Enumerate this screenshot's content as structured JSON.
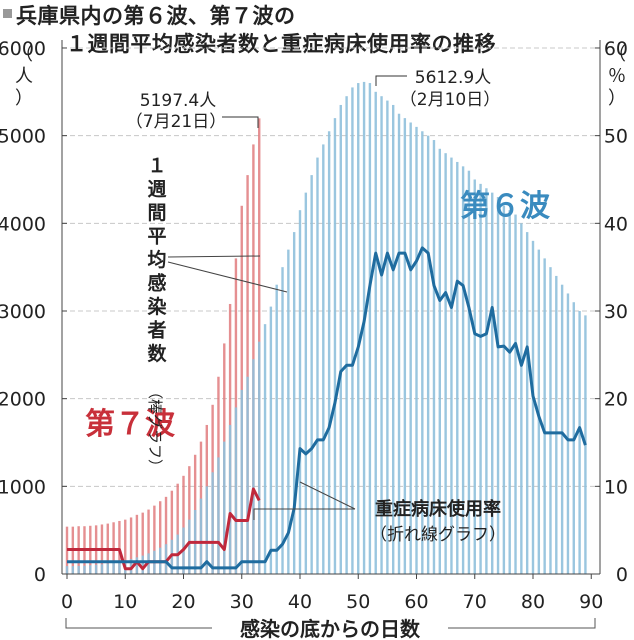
{
  "chart_data": {
    "type": "bar+line",
    "title": "兵庫県内の第６波、第７波の",
    "subtitle": "１週間平均感染者数と重症病床使用率の推移",
    "xlabel": "感染の底からの日数",
    "ylabel_left": "人",
    "ylabel_right": "％",
    "x_ticks": [
      "0",
      "10",
      "20",
      "30",
      "40",
      "50",
      "60",
      "70",
      "80",
      "90"
    ],
    "y_left_ticks": [
      "0",
      "1000",
      "2000",
      "3000",
      "4000",
      "5000",
      "6000"
    ],
    "y_right_ticks": [
      "0",
      "10",
      "20",
      "30",
      "40",
      "50",
      "60"
    ],
    "ylim_left": [
      0,
      6000
    ],
    "ylim_right": [
      0,
      60
    ],
    "xlim": [
      0,
      90
    ],
    "grid": "horizontal-dashed",
    "colors": {
      "wave7": "#e07b7e",
      "wave7_line": "#c0283c",
      "wave6": "#8fc0db",
      "wave6_line": "#1f6c9f",
      "wave7_text": "#c8303a",
      "wave6_text": "#3a8bbf"
    },
    "series": [
      {
        "name": "第７波",
        "kind": "bar",
        "x": [
          0,
          1,
          2,
          3,
          4,
          5,
          6,
          7,
          8,
          9,
          10,
          11,
          12,
          13,
          14,
          15,
          16,
          17,
          18,
          19,
          20,
          21,
          22,
          23,
          24,
          25,
          26,
          27,
          28,
          29,
          30,
          31,
          32,
          33
        ],
        "values": [
          540,
          540,
          545,
          545,
          550,
          555,
          565,
          575,
          590,
          605,
          620,
          645,
          675,
          700,
          735,
          780,
          830,
          880,
          950,
          1030,
          1120,
          1230,
          1360,
          1510,
          1700,
          1930,
          2250,
          2630,
          3080,
          3600,
          4200,
          4550,
          4900,
          5197.4
        ]
      },
      {
        "name": "第６波",
        "kind": "bar",
        "x": [
          0,
          1,
          2,
          3,
          4,
          5,
          6,
          7,
          8,
          9,
          10,
          11,
          12,
          13,
          14,
          15,
          16,
          17,
          18,
          19,
          20,
          21,
          22,
          23,
          24,
          25,
          26,
          27,
          28,
          29,
          30,
          31,
          32,
          33,
          34,
          35,
          36,
          37,
          38,
          39,
          40,
          41,
          42,
          43,
          44,
          45,
          46,
          47,
          48,
          49,
          50,
          51,
          52,
          53,
          54,
          55,
          56,
          57,
          58,
          59,
          60,
          61,
          62,
          63,
          64,
          65,
          66,
          67,
          68,
          69,
          70,
          71,
          72,
          73,
          74,
          75,
          76,
          77,
          78,
          79,
          80,
          81,
          82,
          83,
          84,
          85,
          86,
          87,
          88,
          89
        ],
        "values": [
          90,
          90,
          92,
          95,
          100,
          105,
          110,
          118,
          128,
          140,
          155,
          170,
          190,
          210,
          235,
          265,
          300,
          340,
          390,
          450,
          530,
          620,
          730,
          860,
          1000,
          1160,
          1330,
          1510,
          1700,
          1900,
          2100,
          2250,
          2450,
          2650,
          2850,
          3050,
          3300,
          3500,
          3700,
          3900,
          4150,
          4350,
          4550,
          4750,
          4900,
          5050,
          5200,
          5350,
          5450,
          5550,
          5600,
          5612.9,
          5600,
          5500,
          5450,
          5400,
          5350,
          5250,
          5200,
          5150,
          5100,
          5050,
          5000,
          4950,
          4850,
          4800,
          4750,
          4700,
          4650,
          4600,
          4500,
          4450,
          4400,
          4350,
          4300,
          4200,
          4150,
          4100,
          4000,
          3900,
          3800,
          3700,
          3600,
          3500,
          3400,
          3300,
          3200,
          3100,
          3000,
          2950
        ]
      },
      {
        "name": "第７波 重症病床使用率",
        "kind": "line",
        "x": [
          0,
          1,
          2,
          3,
          4,
          5,
          6,
          7,
          8,
          9,
          10,
          11,
          12,
          13,
          14,
          15,
          16,
          17,
          18,
          19,
          20,
          21,
          22,
          23,
          24,
          25,
          26,
          27,
          28,
          29,
          30,
          31,
          32,
          33
        ],
        "values": [
          2.8,
          2.8,
          2.8,
          2.8,
          2.8,
          2.8,
          2.8,
          2.8,
          2.8,
          2.8,
          0.6,
          0.6,
          1.4,
          0.6,
          1.4,
          1.4,
          1.4,
          1.4,
          2.2,
          2.2,
          2.8,
          3.6,
          3.6,
          3.6,
          3.6,
          3.6,
          3.6,
          2.8,
          6.9,
          6.1,
          6.1,
          6.1,
          9.7,
          8.4
        ]
      },
      {
        "name": "第６波 重症病床使用率",
        "kind": "line",
        "x": [
          0,
          1,
          2,
          3,
          4,
          5,
          6,
          7,
          8,
          9,
          10,
          11,
          12,
          13,
          14,
          15,
          16,
          17,
          18,
          19,
          20,
          21,
          22,
          23,
          24,
          25,
          26,
          27,
          28,
          29,
          30,
          31,
          32,
          33,
          34,
          35,
          36,
          37,
          38,
          39,
          40,
          41,
          42,
          43,
          44,
          45,
          46,
          47,
          48,
          49,
          50,
          51,
          52,
          53,
          54,
          55,
          56,
          57,
          58,
          59,
          60,
          61,
          62,
          63,
          64,
          65,
          66,
          67,
          68,
          69,
          70,
          71,
          72,
          73,
          74,
          75,
          76,
          77,
          78,
          79,
          80,
          81,
          82,
          83,
          84,
          85,
          86,
          87,
          88,
          89
        ],
        "values": [
          1.4,
          1.4,
          1.4,
          1.4,
          1.4,
          1.4,
          1.4,
          1.4,
          1.4,
          1.4,
          1.4,
          1.4,
          1.4,
          1.4,
          1.4,
          1.4,
          1.4,
          1.4,
          0.7,
          0.7,
          0.7,
          0.7,
          0.7,
          0.7,
          1.4,
          0.7,
          0.7,
          0.7,
          0.7,
          0.7,
          1.4,
          1.4,
          1.4,
          1.4,
          1.4,
          2.7,
          2.7,
          3.4,
          4.7,
          7.5,
          14.3,
          13.7,
          14.3,
          15.3,
          15.3,
          16.7,
          19.5,
          23.1,
          23.8,
          23.8,
          25.9,
          28.8,
          32.9,
          36.6,
          34.1,
          36.6,
          34.7,
          36.6,
          36.6,
          34.7,
          35.7,
          37.2,
          36.6,
          32.9,
          31.2,
          32.1,
          30.4,
          33.4,
          32.9,
          30.4,
          27.4,
          27.1,
          27.4,
          30.4,
          25.9,
          26.0,
          25.3,
          26.3,
          23.8,
          25.9,
          20.3,
          18.0,
          16.1,
          16.1,
          16.1,
          16.1,
          15.3,
          15.3,
          16.7,
          14.7
        ]
      }
    ],
    "annotations": {
      "wave7_peak_value": "5197.4人",
      "wave7_peak_date": "（7月21日）",
      "wave6_peak_value": "5612.9人",
      "wave6_peak_date": "（2月10日）",
      "wave7_label": "第７波",
      "wave6_label": "第６波",
      "bar_label_vertical": [
        "１",
        "週",
        "間",
        "平",
        "均",
        "感",
        "染",
        "者",
        "数",
        "（棒グラフ）"
      ],
      "line_label_1": "重症病床使用率",
      "line_label_2": "（折れ線グラフ）"
    }
  }
}
